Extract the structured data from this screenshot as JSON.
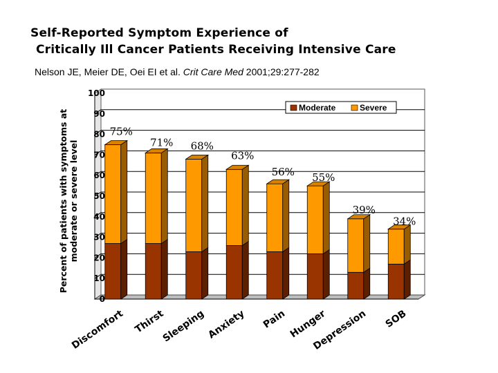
{
  "title": {
    "line1": "Self-Reported Symptom Experience of",
    "line2": "Critically Ill Cancer Patients Receiving Intensive Care"
  },
  "citation": {
    "authors": "Nelson JE, Meier DE, Oei EI et al.",
    "journal": "Crit Care Med",
    "details": "2001;29:277-282"
  },
  "colors": {
    "moderate": "#993300",
    "severe": "#ff9900",
    "label": "#000000"
  },
  "chart_data": {
    "type": "bar",
    "stacked": true,
    "three_d": true,
    "categories": [
      "Discomfort",
      "Thirst",
      "Sleeping",
      "Anxiety",
      "Pain",
      "Hunger",
      "Depression",
      "SOB"
    ],
    "series": [
      {
        "name": "Moderate",
        "values": [
          27,
          27,
          23,
          26,
          23,
          22,
          13,
          17
        ]
      },
      {
        "name": "Severe",
        "values": [
          48,
          44,
          45,
          37,
          33,
          33,
          26,
          17
        ]
      }
    ],
    "totals": [
      75,
      71,
      68,
      63,
      56,
      55,
      39,
      34
    ],
    "data_labels": [
      "75%",
      "71%",
      "68%",
      "63%",
      "56%",
      "55%",
      "39%",
      "34%"
    ],
    "ylabel_line1": "Percent of patients with symptoms at",
    "ylabel_line2": "moderate or severe level",
    "ylim": [
      0,
      100
    ],
    "yticks": [
      0,
      10,
      20,
      30,
      40,
      50,
      60,
      70,
      80,
      90,
      100
    ],
    "legend": {
      "position": "top-right"
    },
    "grid": true
  }
}
